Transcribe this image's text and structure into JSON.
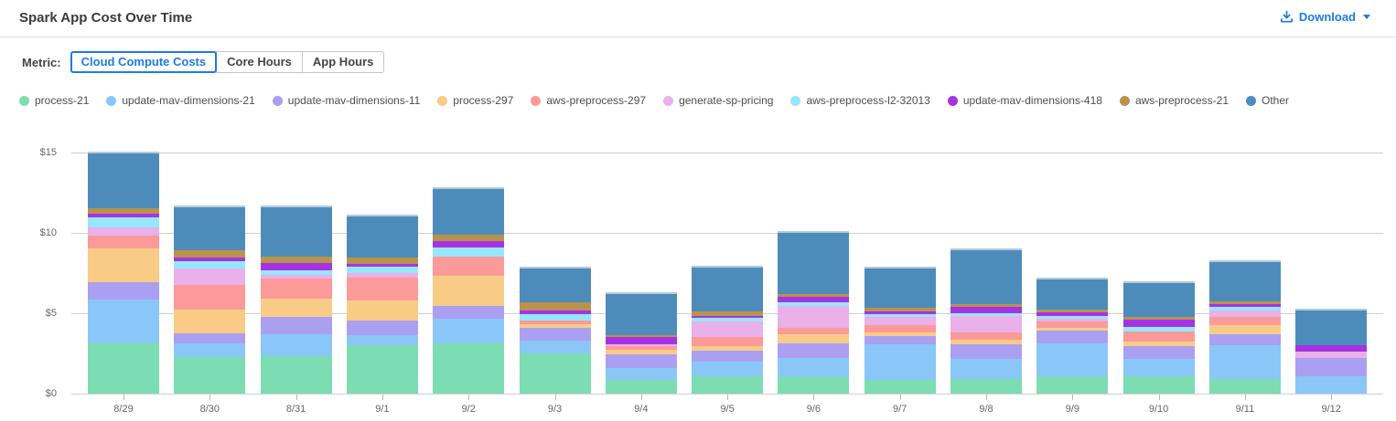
{
  "header": {
    "title": "Spark App Cost Over Time",
    "download_label": "Download"
  },
  "metric": {
    "label": "Metric:",
    "options": [
      {
        "label": "Cloud Compute Costs",
        "selected": true
      },
      {
        "label": "Core Hours",
        "selected": false
      },
      {
        "label": "App Hours",
        "selected": false
      }
    ]
  },
  "colors": {
    "accent_blue": "#1b7ce0",
    "bar_top_cap": "#b3cbdd",
    "gridline": "#cfcfcf",
    "axis_text": "#666666"
  },
  "chart_data": {
    "type": "bar",
    "stacked": true,
    "title": "Spark App Cost Over Time",
    "xlabel": "",
    "ylabel": "",
    "ylim": [
      0,
      15
    ],
    "y_tick_values": [
      0,
      5,
      10,
      15
    ],
    "y_tick_labels": [
      "$0",
      "$5",
      "$10",
      "$15"
    ],
    "grid": true,
    "legend_position": "top",
    "categories": [
      "8/29",
      "8/30",
      "8/31",
      "9/1",
      "9/2",
      "9/3",
      "9/4",
      "9/5",
      "9/6",
      "9/7",
      "9/8",
      "9/9",
      "9/10",
      "9/11",
      "9/12"
    ],
    "series": [
      {
        "name": "process-21",
        "color": "#7cddb3",
        "values": [
          3.1,
          2.25,
          2.35,
          3.0,
          3.15,
          2.5,
          0.85,
          1.1,
          1.1,
          0.85,
          0.9,
          1.1,
          1.1,
          0.9,
          0
        ]
      },
      {
        "name": "update-mav-dimensions-21",
        "color": "#8ac7f8",
        "values": [
          2.78,
          0.85,
          1.35,
          0.65,
          1.5,
          0.8,
          0.75,
          0.9,
          1.1,
          2.2,
          1.25,
          2.0,
          1.05,
          2.1,
          1.1
        ]
      },
      {
        "name": "update-mav-dimensions-11",
        "color": "#ab9ff2",
        "values": [
          1.07,
          0.65,
          1.1,
          0.9,
          0.8,
          0.8,
          0.85,
          0.65,
          0.9,
          0.55,
          0.9,
          0.8,
          0.8,
          0.7,
          1.1
        ]
      },
      {
        "name": "process-297",
        "color": "#f8cc86",
        "values": [
          2.06,
          1.5,
          1.1,
          1.25,
          1.9,
          0.2,
          0.3,
          0.3,
          0.6,
          0.2,
          0.3,
          0.2,
          0.3,
          0.55,
          0
        ]
      },
      {
        "name": "aws-preprocess-297",
        "color": "#fb9a98",
        "values": [
          0.8,
          1.5,
          1.25,
          1.4,
          1.15,
          0.25,
          0.2,
          0.55,
          0.4,
          0.45,
          0.45,
          0.4,
          0.6,
          0.55,
          0
        ]
      },
      {
        "name": "generate-sp-pricing",
        "color": "#e9b0ea",
        "values": [
          0.55,
          1.05,
          0.25,
          0.3,
          0,
          0,
          0.1,
          1.0,
          1.35,
          0.55,
          1.05,
          0.15,
          0,
          0.4,
          0.4
        ]
      },
      {
        "name": "aws-preprocess-l2-32013",
        "color": "#96e7fa",
        "values": [
          0.6,
          0.45,
          0.3,
          0.4,
          0.6,
          0.4,
          0.05,
          0.2,
          0.25,
          0.15,
          0.15,
          0.2,
          0.3,
          0.2,
          0
        ]
      },
      {
        "name": "update-mav-dimensions-418",
        "color": "#a633e3",
        "values": [
          0.25,
          0.2,
          0.45,
          0.2,
          0.4,
          0.25,
          0.45,
          0.15,
          0.3,
          0.15,
          0.4,
          0.2,
          0.45,
          0.15,
          0.4
        ]
      },
      {
        "name": "aws-preprocess-21",
        "color": "#b9934d",
        "values": [
          0.35,
          0.45,
          0.4,
          0.35,
          0.4,
          0.5,
          0.1,
          0.25,
          0.2,
          0.25,
          0.2,
          0.2,
          0.2,
          0.2,
          0
        ]
      },
      {
        "name": "Other",
        "color": "#4d8cba",
        "values": [
          3.4,
          2.7,
          3.05,
          2.6,
          2.85,
          2.1,
          2.55,
          2.75,
          3.8,
          2.45,
          3.3,
          1.85,
          2.1,
          2.45,
          2.2
        ]
      }
    ]
  }
}
